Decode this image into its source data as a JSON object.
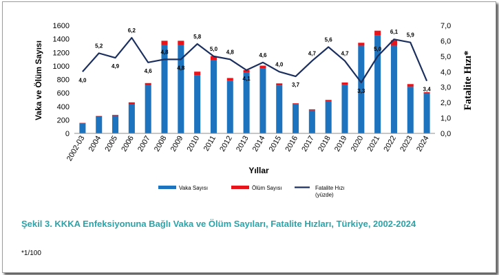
{
  "chart_data": {
    "type": "bar",
    "stacked": true,
    "categories": [
      "2002-03",
      "2004",
      "2005",
      "2006",
      "2007",
      "2008",
      "2009",
      "2010",
      "2011",
      "2012",
      "2013",
      "2014",
      "2015",
      "2016",
      "2017",
      "2018",
      "2019",
      "2020",
      "2021",
      "2022",
      "2023",
      "2024"
    ],
    "series": [
      {
        "name": "Vaka Sayısı",
        "type": "bar",
        "axis": "left",
        "color": "#1e73be",
        "values": [
          150,
          245,
          260,
          433,
          713,
          1310,
          1310,
          865,
          1090,
          783,
          900,
          960,
          712,
          430,
          340,
          470,
          720,
          1300,
          1450,
          1300,
          690,
          590
        ]
      },
      {
        "name": "Ölüm Sayısı",
        "type": "bar",
        "axis": "left",
        "color": "#e8141b",
        "values": [
          6,
          13,
          13,
          27,
          33,
          63,
          63,
          50,
          56,
          38,
          37,
          44,
          29,
          16,
          16,
          26,
          34,
          43,
          72,
          80,
          41,
          20
        ]
      },
      {
        "name": "Fatalite Hızı\n(yüzde)",
        "type": "line",
        "axis": "right",
        "color": "#1b2f5e",
        "values": [
          4.0,
          5.2,
          4.9,
          6.2,
          4.6,
          4.8,
          4.8,
          5.8,
          5.0,
          4.8,
          4.1,
          4.6,
          4.0,
          3.7,
          4.7,
          5.6,
          4.7,
          3.3,
          5.0,
          6.1,
          5.9,
          3.4
        ]
      }
    ],
    "line_labels": [
      "4,0",
      "5,2",
      "4,9",
      "6,2",
      "4,6",
      "4,8",
      "4,8",
      "5,8",
      "5,0",
      "4,8",
      "4,1",
      "4,6",
      "4,0",
      "3,7",
      "4,7",
      "5,6",
      "4,7",
      "3,3",
      "5,0",
      "6,1",
      "5,9",
      "3,4"
    ],
    "xlabel": "Yıllar",
    "ylabel": "Vaka ve Ölüm Sayısı",
    "ylabel_right": "Fatalite Hızı*",
    "ylim": [
      0,
      1600
    ],
    "ylim_right": [
      0,
      7
    ],
    "yticks": [
      "0",
      "200",
      "400",
      "600",
      "800",
      "1000",
      "1200",
      "1400",
      "1600"
    ],
    "yticks_right": [
      "0,0",
      "1,0",
      "2,0",
      "3,0",
      "4,0",
      "5,0",
      "6,0",
      "7,0"
    ],
    "grid": false,
    "legend_position": "bottom"
  },
  "caption": "Şekil 3. KKKA Enfeksiyonuna Bağlı Vaka ve Ölüm Sayıları, Fatalite Hızları, Türkiye, 2002-2024",
  "footnote": "*1/100"
}
